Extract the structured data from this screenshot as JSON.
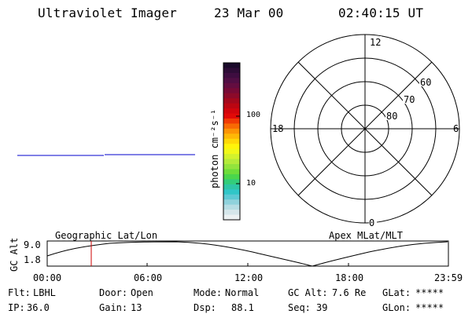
{
  "header": {
    "instrument": "Ultraviolet Imager",
    "date": "23 Mar 00",
    "time": "02:40:15 UT"
  },
  "colorbar": {
    "unit_label": "photon cm⁻²s⁻¹",
    "tick_labels": [
      "100",
      "10"
    ],
    "colors": [
      "#1a0a2a",
      "#2d0c36",
      "#3e0d40",
      "#500e44",
      "#630d40",
      "#770a36",
      "#8c0a2a",
      "#a3081c",
      "#bb0612",
      "#d1050c",
      "#e10a08",
      "#f03a05",
      "#f86a04",
      "#fc9405",
      "#feb806",
      "#ffd807",
      "#fff40a",
      "#f0f81a",
      "#d2f22d",
      "#b4ea3a",
      "#92e33d",
      "#6edd3a",
      "#4ad64c",
      "#33cd7a",
      "#2ec6a6",
      "#30c6c8",
      "#5cc9d4",
      "#8fd2dc",
      "#b6dde4",
      "#d5e6ea",
      "#ecf1f2"
    ]
  },
  "polar_plot": {
    "labels": {
      "top": "12",
      "bottom": "0",
      "left": "18",
      "right": "6"
    },
    "latitude_labels": [
      "60",
      "70",
      "80"
    ]
  },
  "timeline": {
    "y_label": "GC Alt",
    "left_title": "Geographic Lat/Lon",
    "right_title": "Apex MLat/MLT",
    "y_ticks": [
      "9.0",
      "1.8"
    ],
    "x_ticks": [
      "00:00",
      "06:00",
      "12:00",
      "18:00",
      "23:59"
    ],
    "marker_time": "02:40:15",
    "marker_color": "#cc0000"
  },
  "status": {
    "row1": [
      {
        "label": "Flt:",
        "value": "LBHL"
      },
      {
        "label": "Door:",
        "value": "Open"
      },
      {
        "label": "Mode:",
        "value": "Normal"
      },
      {
        "label": "GC Alt:",
        "value": "7.6 Re"
      },
      {
        "label": "GLat:",
        "value": "*****"
      }
    ],
    "row2": [
      {
        "label": "IP:",
        "value": "36.0"
      },
      {
        "label": "Gain:",
        "value": "13"
      },
      {
        "label": "Dsp:",
        "value": "88.1"
      },
      {
        "label": "Seq:",
        "value": "39"
      },
      {
        "label": "GLon:",
        "value": "*****"
      }
    ]
  },
  "colors": {
    "trace": "#0000cc",
    "axis": "#000000",
    "marker": "#cc0000"
  }
}
